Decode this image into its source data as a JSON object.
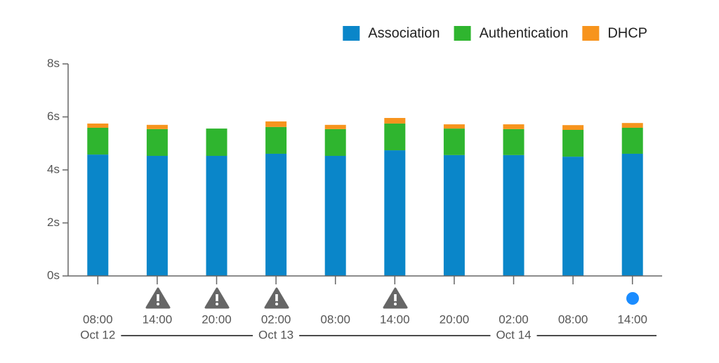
{
  "chart_data": {
    "type": "stacked-bar",
    "categories": [
      "08:00",
      "14:00",
      "20:00",
      "02:00",
      "08:00",
      "14:00",
      "20:00",
      "02:00",
      "08:00",
      "14:00"
    ],
    "dates": [
      "Oct 12",
      null,
      null,
      "Oct 13",
      null,
      null,
      null,
      "Oct 14",
      null,
      null
    ],
    "series": [
      {
        "name": "Association",
        "color": "#0a86c9",
        "values": [
          4.58,
          4.53,
          4.53,
          4.61,
          4.53,
          4.74,
          4.56,
          4.56,
          4.5,
          4.61
        ]
      },
      {
        "name": "Authentication",
        "color": "#2fb52f",
        "values": [
          1.01,
          1.01,
          1.03,
          1.01,
          1.01,
          1.01,
          1.0,
          0.98,
          1.01,
          0.98
        ]
      },
      {
        "name": "DHCP",
        "color": "#f7941d",
        "values": [
          0.16,
          0.16,
          0,
          0.21,
          0.16,
          0.21,
          0.16,
          0.18,
          0.18,
          0.18
        ]
      }
    ],
    "ylim": [
      0,
      8
    ],
    "yticks": [
      {
        "value": 0,
        "label": "0s"
      },
      {
        "value": 2,
        "label": "2s"
      },
      {
        "value": 4,
        "label": "4s"
      },
      {
        "value": 6,
        "label": "6s"
      },
      {
        "value": 8,
        "label": "8s"
      }
    ],
    "grid": false
  }
}
